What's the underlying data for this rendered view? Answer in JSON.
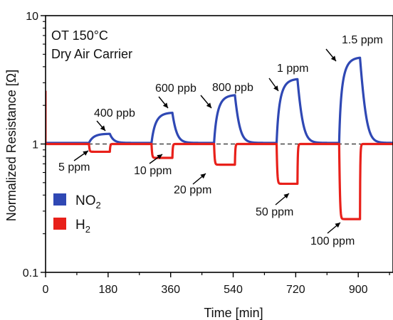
{
  "chart_data": {
    "type": "line",
    "title": "",
    "annotation_lines": [
      "OT 150°C",
      "Dry Air Carrier"
    ],
    "xlabel": "Time [min]",
    "ylabel": "Normalized Resistance [Ω]",
    "x_scale": "linear",
    "y_scale": "log",
    "xlim": [
      0,
      1000
    ],
    "ylim": [
      0.1,
      10
    ],
    "x_ticks": [
      0,
      180,
      360,
      540,
      720,
      900
    ],
    "x_tick_labels": [
      "0",
      "180",
      "360",
      "540",
      "720",
      "900"
    ],
    "y_ticks": [
      0.1,
      1,
      10
    ],
    "y_tick_labels": [
      "0.1",
      "1",
      "10"
    ],
    "reference_line": {
      "y": 1,
      "style": "dashed"
    },
    "legend": {
      "placement": "lower-left",
      "entries": [
        {
          "series": 0,
          "label": "NO",
          "sub": "2"
        },
        {
          "series": 1,
          "label": "H",
          "sub": "2"
        }
      ]
    },
    "series": [
      {
        "color": "#2f48b4",
        "pulses": [
          {
            "label": "400 ppb",
            "on": 125,
            "off": 185,
            "peak": 1.2
          },
          {
            "label": "600 ppb",
            "on": 305,
            "off": 365,
            "peak": 1.75
          },
          {
            "label": "800 ppb",
            "on": 485,
            "off": 545,
            "peak": 2.4
          },
          {
            "label": "1 ppm",
            "on": 665,
            "off": 725,
            "peak": 3.2
          },
          {
            "label": "1.5 ppm",
            "on": 845,
            "off": 905,
            "peak": 4.7
          }
        ]
      },
      {
        "color": "#e8201a",
        "pulses": [
          {
            "label": "5 ppm",
            "on": 125,
            "off": 185,
            "level": 0.87
          },
          {
            "label": "10 ppm",
            "on": 305,
            "off": 365,
            "level": 0.78
          },
          {
            "label": "20 ppm",
            "on": 485,
            "off": 545,
            "level": 0.69
          },
          {
            "label": "50 ppm",
            "on": 665,
            "off": 725,
            "level": 0.49
          },
          {
            "label": "100 ppm",
            "on": 845,
            "off": 905,
            "level": 0.26
          }
        ]
      }
    ]
  }
}
